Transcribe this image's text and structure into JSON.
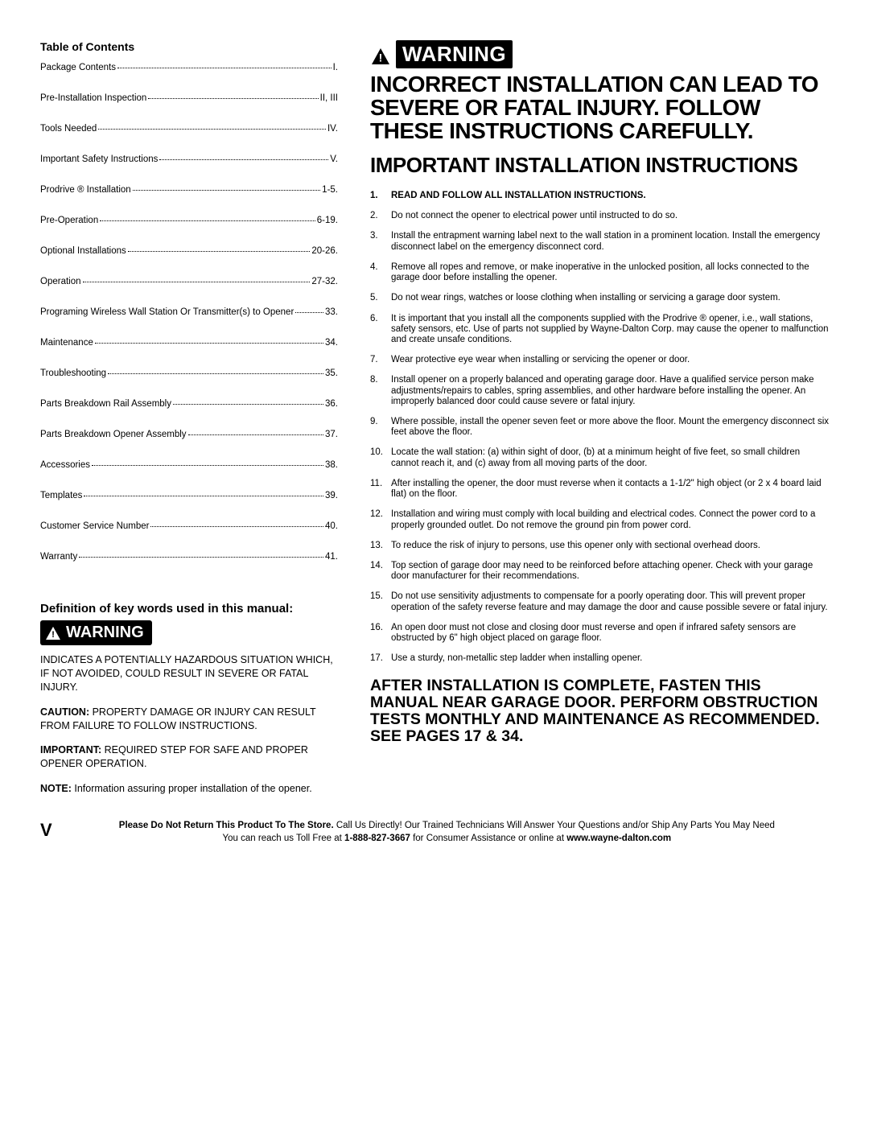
{
  "toc": {
    "heading": "Table of Contents",
    "items": [
      {
        "label": "Package Contents",
        "page": "I."
      },
      {
        "label": "Pre-Installation Inspection",
        "page": "II, III"
      },
      {
        "label": "Tools Needed",
        "page": "IV."
      },
      {
        "label": "Important Safety Instructions",
        "page": "V."
      },
      {
        "label": "Prodrive ® Installation",
        "page": "1-5."
      },
      {
        "label": "Pre-Operation",
        "page": "6-19."
      },
      {
        "label": "Optional Installations",
        "page": "20-26."
      },
      {
        "label": "Operation",
        "page": "27-32."
      },
      {
        "label": "Programing Wireless Wall Station Or Transmitter(s) to Opener",
        "page": " 33."
      },
      {
        "label": "Maintenance",
        "page": " 34."
      },
      {
        "label": "Troubleshooting",
        "page": " 35."
      },
      {
        "label": "Parts Breakdown Rail Assembly",
        "page": " 36."
      },
      {
        "label": "Parts Breakdown Opener Assembly",
        "page": " 37."
      },
      {
        "label": "Accessories",
        "page": " 38."
      },
      {
        "label": "Templates",
        "page": " 39."
      },
      {
        "label": "Customer Service Number",
        "page": " 40."
      },
      {
        "label": "Warranty",
        "page": " 41."
      }
    ]
  },
  "definitions": {
    "heading": "Definition of key words used in this manual:",
    "warning_label": "WARNING",
    "warning_text": "INDICATES A POTENTIALLY HAZARDOUS SITUATION WHICH, IF NOT AVOIDED, COULD RESULT IN SEVERE OR FATAL INJURY.",
    "caution_label": "CAUTION:",
    "caution_text": " PROPERTY DAMAGE OR INJURY CAN RESULT FROM FAILURE TO FOLLOW INSTRUCTIONS.",
    "important_label": "IMPORTANT:",
    "important_text": " REQUIRED STEP FOR SAFE AND PROPER OPENER OPERATION.",
    "note_label": "NOTE:",
    "note_text": " Information assuring proper installation of the opener."
  },
  "right": {
    "warning_label": "WARNING",
    "headline": "INCORRECT INSTALLATION CAN LEAD TO SEVERE OR FATAL INJURY. FOLLOW THESE INSTRUCTIONS CAREFULLY.",
    "subheading": "IMPORTANT INSTALLATION INSTRUCTIONS",
    "items": [
      "READ AND FOLLOW ALL INSTALLATION INSTRUCTIONS.",
      "Do not connect the opener to electrical power until instructed to do so.",
      "Install the entrapment warning label next to the wall station in a prominent location. Install the emergency disconnect label on the emergency disconnect cord.",
      "Remove all ropes and remove, or make inoperative in the unlocked position, all locks connected to the garage door before installing the opener.",
      "Do not wear rings, watches or loose clothing when installing or servicing a garage door system.",
      "It is important that you install all the components supplied with the Prodrive ® opener, i.e., wall stations, safety sensors, etc. Use of parts not supplied by Wayne-Dalton Corp. may cause the opener to malfunction and create unsafe conditions.",
      "Wear protective eye wear when installing or servicing the opener or door.",
      "Install opener on a properly balanced and operating garage door. Have a qualified service person make adjustments/repairs to cables, spring assemblies, and other hardware before installing the opener. An improperly balanced door could cause severe or fatal injury.",
      "Where possible, install the opener seven feet or more above the floor. Mount the emergency disconnect six feet above the floor.",
      "Locate the wall station: (a) within sight of door, (b) at a minimum height of five feet, so small children cannot reach it, and (c) away from all moving parts of the door.",
      "After installing the opener, the door must reverse when it contacts a 1-1/2\" high object (or 2 x 4 board laid flat) on the floor.",
      "Installation and wiring must comply with local building and electrical codes. Connect the power cord to a properly grounded outlet. Do not remove the ground pin from power cord.",
      "To reduce the risk of injury to persons, use this opener only with sectional overhead doors.",
      "Top section of garage door may need to be reinforced before attaching opener. Check with your garage door manufacturer for their recommendations.",
      "Do not use sensitivity adjustments to compensate for a poorly operating door. This will prevent proper operation of the safety reverse feature and may damage the door and cause possible severe or fatal injury.",
      "An open door must not close and closing door must reverse and open if infrared safety sensors are obstructed by 6\" high object placed on garage floor.",
      "Use a sturdy, non-metallic step ladder when installing opener."
    ],
    "after_install": "AFTER INSTALLATION IS COMPLETE, FASTEN THIS MANUAL NEAR GARAGE DOOR. PERFORM OBSTRUCTION TESTS MONTHLY AND MAINTENANCE AS RECOMMENDED. SEE PAGES 17 & 34."
  },
  "footer": {
    "page_number": "V",
    "line1_bold": "Please Do Not Return This Product To The Store.",
    "line1_rest": " Call Us Directly! Our Trained Technicians Will Answer Your Questions and/or Ship Any Parts You May Need",
    "line2_pre": "You can reach us Toll Free at ",
    "phone": "1-888-827-3667",
    "line2_mid": " for Consumer Assistance or online at ",
    "website": "www.wayne-dalton.com"
  }
}
